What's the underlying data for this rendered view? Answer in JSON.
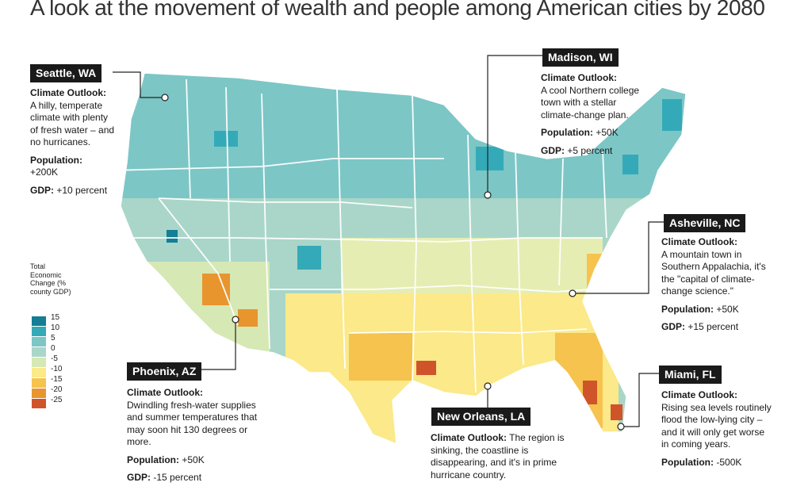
{
  "title": "A look at the movement of wealth and people among American cities by 2080",
  "legend": {
    "title": "Total Economic Change (% county GDP)",
    "ticks": [
      "15",
      "10",
      "5",
      "0",
      "-5",
      "-10",
      "-15",
      "-20",
      "-25"
    ],
    "colors": [
      "#137e95",
      "#34aab8",
      "#7cc6c6",
      "#a9d6c9",
      "#d6e8b4",
      "#fbe98a",
      "#f5c34e",
      "#e8952e",
      "#d0542a"
    ]
  },
  "cities": [
    {
      "name": "Seattle, WA",
      "climate_label": "Climate Outlook:",
      "climate_text": "A hilly, temperate climate with plenty of fresh water – and no hurricanes.",
      "population_label": "Population:",
      "population_value": "+200K",
      "gdp_label": "GDP:",
      "gdp_value": "+10 percent"
    },
    {
      "name": "Madison, WI",
      "climate_label": "Climate Outlook:",
      "climate_text": "A cool Northern college town with a stellar climate-change plan.",
      "population_label": "Population:",
      "population_value": "+50K",
      "gdp_label": "GDP:",
      "gdp_value": "+5 percent"
    },
    {
      "name": "Asheville, NC",
      "climate_label": "Climate Outlook:",
      "climate_text": "A mountain town in Southern Appalachia, it's the \"capital of climate-change science.\"",
      "population_label": "Population:",
      "population_value": "+50K",
      "gdp_label": "GDP:",
      "gdp_value": "+15 percent"
    },
    {
      "name": "Phoenix, AZ",
      "climate_label": "Climate Outlook:",
      "climate_text": "Dwindling fresh-water supplies and summer temperatures that may soon hit 130 degrees or more.",
      "population_label": "Population:",
      "population_value": "+50K",
      "gdp_label": "GDP:",
      "gdp_value": "-15 percent"
    },
    {
      "name": "New Orleans, LA",
      "climate_label": "Climate Outlook:",
      "climate_text": "The region is sinking, the coastline is disappearing, and it's in prime hurricane country.",
      "population_label": "",
      "population_value": "",
      "gdp_label": "",
      "gdp_value": ""
    },
    {
      "name": "Miami, FL",
      "climate_label": "Climate Outlook:",
      "climate_text": "Rising sea levels routinely flood the low-lying city – and it will only get worse in coming years.",
      "population_label": "Population:",
      "population_value": "-500K",
      "gdp_label": "",
      "gdp_value": ""
    }
  ]
}
